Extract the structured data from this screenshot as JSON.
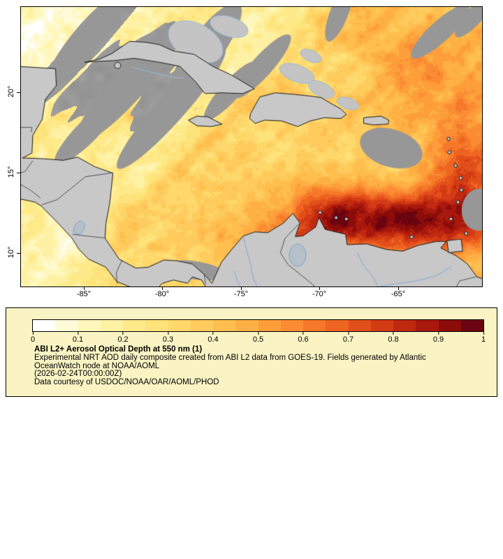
{
  "figure": {
    "background": "#ffffff"
  },
  "map": {
    "x_axis": {
      "labels": [
        "-85°",
        "-80°",
        "-75°",
        "-70°",
        "-65°"
      ]
    },
    "y_axis": {
      "labels": [
        "20°",
        "15°",
        "10°"
      ]
    },
    "extent": {
      "lon_min": -89.0,
      "lon_max": -59.67,
      "lat_min": 7.9,
      "lat_max": 25.29
    },
    "colors": {
      "land": "#c8c8c8",
      "cloud": "#979797",
      "coast": "#1a1a1a",
      "border": "#333333",
      "river": "#7aa3d4",
      "bank": "#c4c4c4",
      "bank_outline": "#97bbde",
      "lake": "#b6c0ca"
    }
  },
  "colorbar": {
    "min": 0,
    "max": 1,
    "tick_labels": [
      "0",
      "0.1",
      "0.2",
      "0.3",
      "0.4",
      "0.5",
      "0.6",
      "0.7",
      "0.8",
      "0.9",
      "1"
    ],
    "colors": [
      "#ffffff",
      "#fffbd9",
      "#fff7bc",
      "#fff1a3",
      "#ffea8a",
      "#fee27a",
      "#fed86b",
      "#fecb5c",
      "#febf4f",
      "#feb044",
      "#fd9e3a",
      "#fb8c33",
      "#f67829",
      "#ee6421",
      "#e24f1a",
      "#d33b14",
      "#c02910",
      "#a8180c",
      "#8c0c0a",
      "#6a0410"
    ]
  },
  "legend_text": {
    "panel_background": "#faf3c3",
    "title": "ABI L2+ Aerosol Optical Depth at 550 nm (1)",
    "lines": [
      "Experimental NRT AOD daily composite created from ABI L2 data from GOES-19. Fields generated by Atlantic",
      "OceanWatch node at NOAA/AOML",
      "(2026-02-24T00:00:00Z)",
      "Data courtesy of USDOC/NOAA/OAR/AOML/PHOD"
    ]
  }
}
